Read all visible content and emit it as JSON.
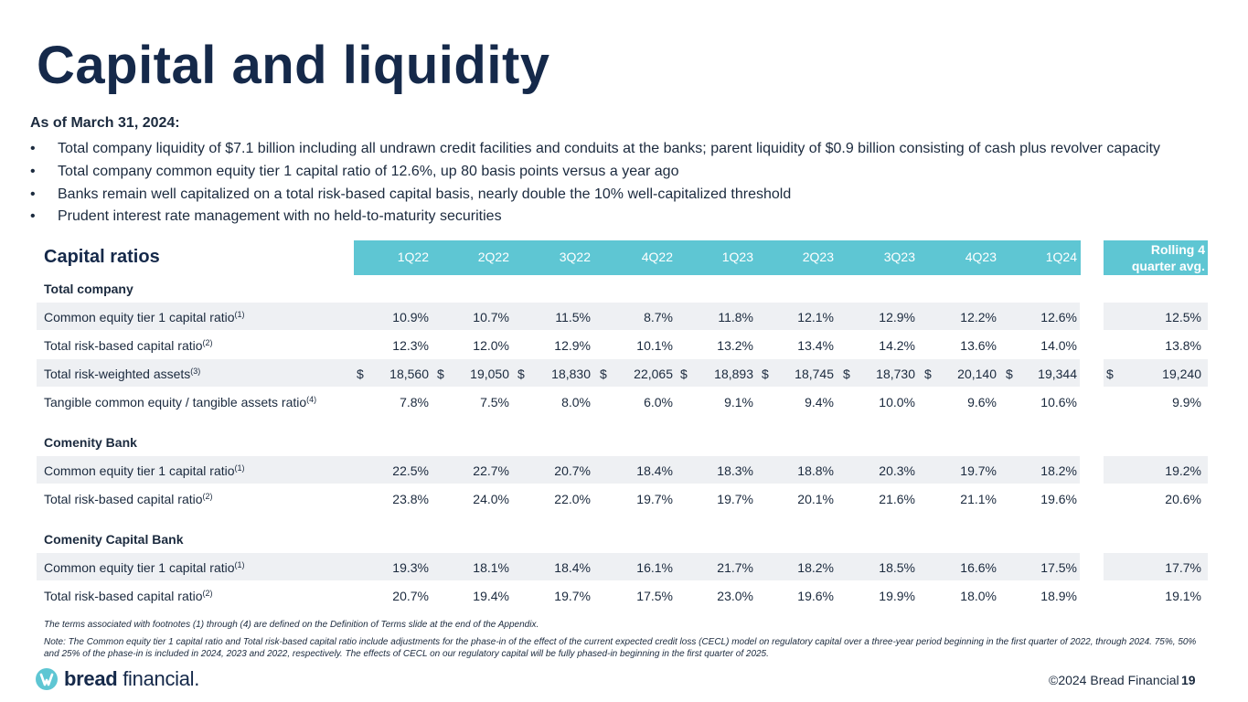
{
  "title": "Capital and liquidity",
  "as_of": "As of March 31, 2024:",
  "bullets": [
    "Total company liquidity of $7.1 billion including all undrawn credit facilities and conduits at the banks; parent liquidity of $0.9 billion consisting of cash plus revolver capacity",
    "Total company common equity tier 1 capital ratio of 12.6%, up 80 basis points versus a year ago",
    "Banks remain well capitalized on a total risk-based capital basis, nearly double the 10% well-capitalized threshold",
    "Prudent interest rate management with no held-to-maturity securities"
  ],
  "bullet_char": "•",
  "table": {
    "header_label": "Capital ratios",
    "quarters": [
      "1Q22",
      "2Q22",
      "3Q22",
      "4Q22",
      "1Q23",
      "2Q23",
      "3Q23",
      "4Q23",
      "1Q24"
    ],
    "rolling_line1": "Rolling 4",
    "rolling_line2": "quarter avg.",
    "currency_symbol": "$",
    "sections": [
      {
        "name": "Total company",
        "rows": [
          {
            "label": "Common equity tier 1 capital ratio",
            "fn": "(1)",
            "values": [
              "10.9%",
              "10.7%",
              "11.5%",
              "8.7%",
              "11.8%",
              "12.1%",
              "12.9%",
              "12.2%",
              "12.6%"
            ],
            "avg": "12.5%",
            "dollar": false
          },
          {
            "label": "Total risk-based capital ratio",
            "fn": "(2)",
            "values": [
              "12.3%",
              "12.0%",
              "12.9%",
              "10.1%",
              "13.2%",
              "13.4%",
              "14.2%",
              "13.6%",
              "14.0%"
            ],
            "avg": "13.8%",
            "dollar": false
          },
          {
            "label": "Total risk-weighted assets",
            "fn": "(3)",
            "values": [
              "18,560",
              "19,050",
              "18,830",
              "22,065",
              "18,893",
              "18,745",
              "18,730",
              "20,140",
              "19,344"
            ],
            "avg": "19,240",
            "dollar": true
          },
          {
            "label": "Tangible common equity / tangible assets ratio",
            "fn": "(4)",
            "values": [
              "7.8%",
              "7.5%",
              "8.0%",
              "6.0%",
              "9.1%",
              "9.4%",
              "10.0%",
              "9.6%",
              "10.6%"
            ],
            "avg": "9.9%",
            "dollar": false
          }
        ]
      },
      {
        "name": "Comenity Bank",
        "rows": [
          {
            "label": "Common equity tier 1 capital ratio",
            "fn": "(1)",
            "values": [
              "22.5%",
              "22.7%",
              "20.7%",
              "18.4%",
              "18.3%",
              "18.8%",
              "20.3%",
              "19.7%",
              "18.2%"
            ],
            "avg": "19.2%",
            "dollar": false
          },
          {
            "label": "Total risk-based capital ratio",
            "fn": "(2)",
            "values": [
              "23.8%",
              "24.0%",
              "22.0%",
              "19.7%",
              "19.7%",
              "20.1%",
              "21.6%",
              "21.1%",
              "19.6%"
            ],
            "avg": "20.6%",
            "dollar": false
          }
        ]
      },
      {
        "name": "Comenity Capital Bank",
        "rows": [
          {
            "label": "Common equity tier 1 capital ratio",
            "fn": "(1)",
            "values": [
              "19.3%",
              "18.1%",
              "18.4%",
              "16.1%",
              "21.7%",
              "18.2%",
              "18.5%",
              "16.6%",
              "17.5%"
            ],
            "avg": "17.7%",
            "dollar": false
          },
          {
            "label": "Total risk-based capital ratio",
            "fn": "(2)",
            "values": [
              "20.7%",
              "19.4%",
              "19.7%",
              "17.5%",
              "23.0%",
              "19.6%",
              "19.9%",
              "18.0%",
              "18.9%"
            ],
            "avg": "19.1%",
            "dollar": false
          }
        ]
      }
    ]
  },
  "footnote1": "The terms associated with footnotes (1) through (4) are defined on the Definition of Terms slide at the end of the Appendix.",
  "footnote2": "Note: The Common equity tier 1 capital ratio and Total risk-based capital ratio include adjustments for the phase-in of the effect of the current expected credit loss (CECL) model on regulatory capital over a three-year period beginning in the first quarter of 2022, through 2024. 75%, 50% and 25% of the phase-in is included in 2024, 2023 and 2022, respectively. The effects of CECL on our regulatory capital will be fully phased-in beginning in the first quarter of 2025.",
  "logo": {
    "bold": "bread",
    "light": "financial",
    "mark": "."
  },
  "copyright": "©2024 Bread Financial",
  "page_number": "19",
  "colors": {
    "navy": "#15294a",
    "teal": "#5ec6d3",
    "band": "#eef0f3"
  }
}
